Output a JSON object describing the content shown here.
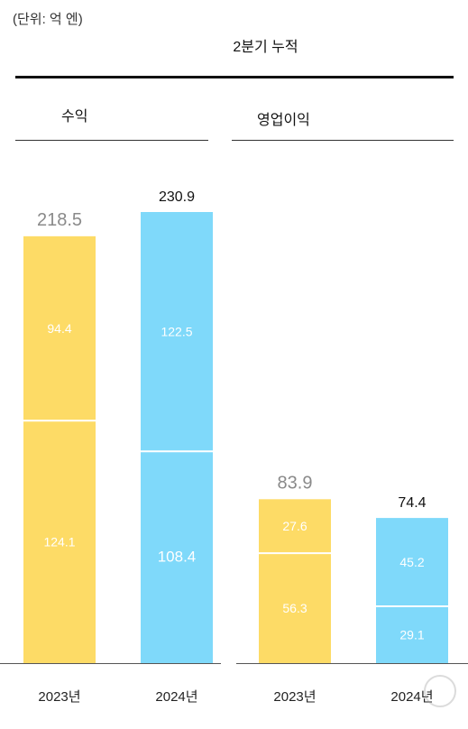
{
  "unit_label": "(단위: 억 엔)",
  "period_label": "2분기 누적",
  "panels": [
    {
      "title": "수익"
    },
    {
      "title": "영업이익"
    }
  ],
  "colors": {
    "y2023": "#FDDB66",
    "y2024": "#7FD9FA",
    "total_2023": "#8a8a8a",
    "total_2024": "#111111"
  },
  "chart_data": [
    {
      "type": "bar",
      "stacked": true,
      "title": "수익",
      "categories": [
        "2023년",
        "2024년"
      ],
      "series": [
        {
          "values": [
            124.1,
            108.4
          ]
        },
        {
          "values": [
            94.4,
            122.5
          ]
        }
      ],
      "totals": [
        "218.5",
        "230.9"
      ],
      "ylim": [
        0,
        231
      ]
    },
    {
      "type": "bar",
      "stacked": true,
      "title": "영업이익",
      "categories": [
        "2023년",
        "2024년"
      ],
      "series": [
        {
          "values": [
            56.3,
            29.1
          ]
        },
        {
          "values": [
            27.6,
            45.2
          ]
        }
      ],
      "totals": [
        "83.9",
        "74.4"
      ],
      "ylim": [
        0,
        231
      ]
    }
  ]
}
